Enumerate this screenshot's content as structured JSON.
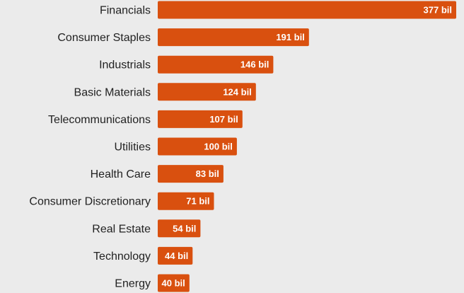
{
  "chart_data": {
    "type": "bar",
    "orientation": "horizontal",
    "categories": [
      "Financials",
      "Consumer Staples",
      "Industrials",
      "Basic Materials",
      "Telecommunications",
      "Utilities",
      "Health Care",
      "Consumer Discretionary",
      "Real Estate",
      "Technology",
      "Energy"
    ],
    "values": [
      377,
      191,
      146,
      124,
      107,
      100,
      83,
      71,
      54,
      44,
      40
    ],
    "data_labels": [
      "377 bil",
      "191 bil",
      "146 bil",
      "124 bil",
      "107 bil",
      "100 bil",
      "83 bil",
      "71 bil",
      "54 bil",
      "44 bil",
      "40 bil"
    ],
    "title": "",
    "xlabel": "",
    "ylabel": "",
    "xlim": [
      0,
      377
    ],
    "grid": false,
    "legend": "none",
    "bar_color": "#d9500f",
    "background_color": "#ebebeb"
  }
}
